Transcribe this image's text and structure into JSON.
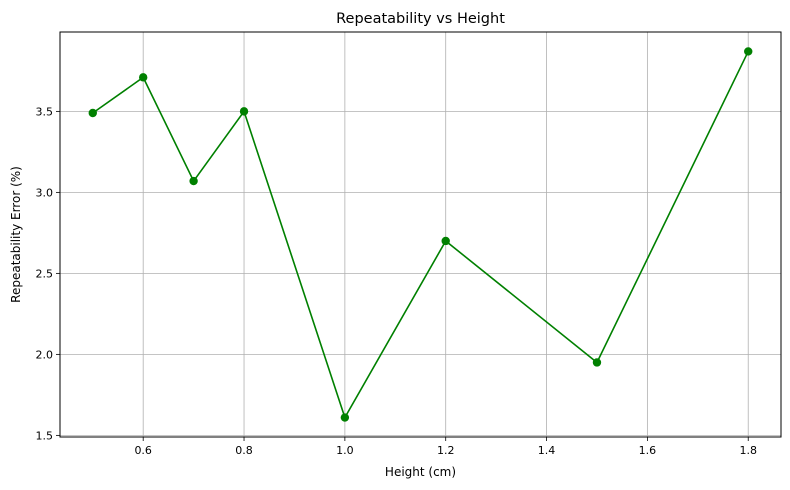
{
  "chart_data": {
    "type": "line",
    "title": "Repeatability vs Height",
    "xlabel": "Height (cm)",
    "ylabel": "Repeatability Error (%)",
    "xlim": [
      0.435,
      1.865
    ],
    "ylim": [
      1.49,
      3.99
    ],
    "xticks": [
      0.6,
      0.8,
      1.0,
      1.2,
      1.4,
      1.6,
      1.8
    ],
    "xtick_labels": [
      "0.6",
      "0.8",
      "1.0",
      "1.2",
      "1.4",
      "1.6",
      "1.8"
    ],
    "yticks": [
      1.5,
      2.0,
      2.5,
      3.0,
      3.5
    ],
    "ytick_labels": [
      "1.5",
      "2.0",
      "2.5",
      "3.0",
      "3.5"
    ],
    "grid": true,
    "series": [
      {
        "x": [
          0.5,
          0.6,
          0.7,
          0.8,
          1.0,
          1.2,
          1.5,
          1.8
        ],
        "y": [
          3.49,
          3.71,
          3.07,
          3.5,
          1.61,
          2.7,
          1.95,
          3.87
        ],
        "color": "#008000",
        "marker": "circle"
      }
    ]
  }
}
